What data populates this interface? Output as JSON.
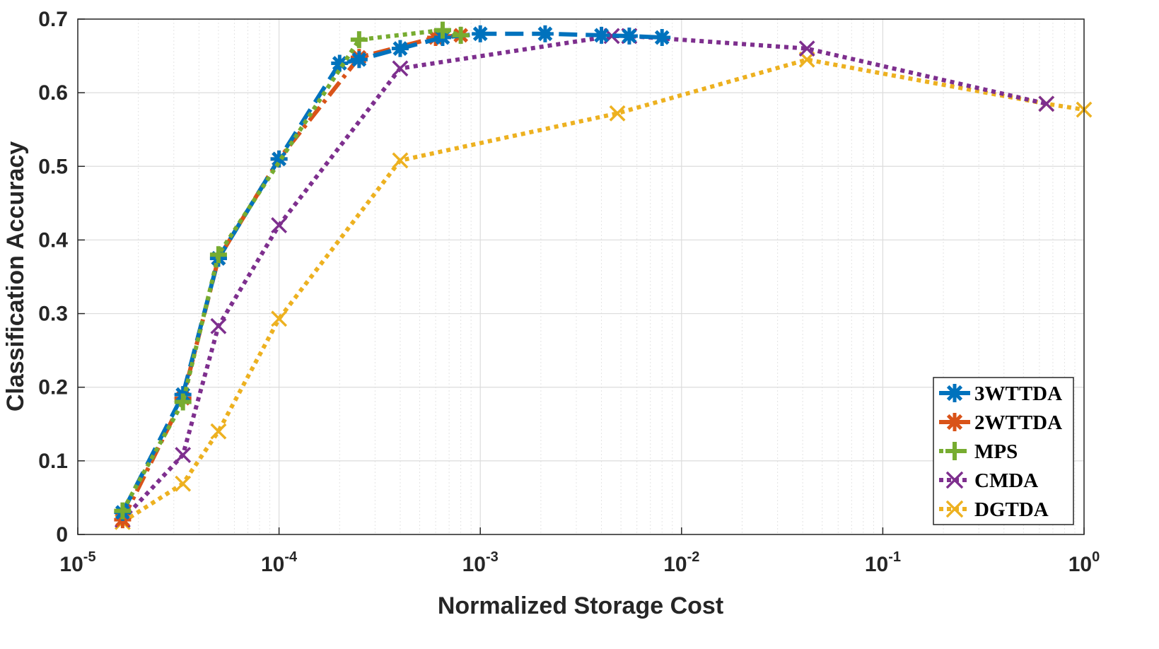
{
  "chart_data": {
    "type": "line",
    "title": "",
    "xlabel": "Normalized Storage Cost",
    "ylabel": "Classification Accuracy",
    "xscale": "log",
    "xlim": [
      1e-05,
      1
    ],
    "ylim": [
      0,
      0.7
    ],
    "grid": true,
    "legend_position": "bottom-right",
    "x_ticks": [
      {
        "base": "10",
        "exp": "-5"
      },
      {
        "base": "10",
        "exp": "-4"
      },
      {
        "base": "10",
        "exp": "-3"
      },
      {
        "base": "10",
        "exp": "-2"
      },
      {
        "base": "10",
        "exp": "-1"
      },
      {
        "base": "10",
        "exp": "0"
      }
    ],
    "y_ticks": [
      "0",
      "0.1",
      "0.2",
      "0.3",
      "0.4",
      "0.5",
      "0.6",
      "0.7"
    ],
    "series": [
      {
        "name": "3WTTDA",
        "color": "#0072BD",
        "marker": "asterisk",
        "line": "dashed",
        "x": [
          1.67e-05,
          3.33e-05,
          5e-05,
          0.0001,
          0.0002,
          0.00025,
          0.0004,
          0.00065,
          0.001,
          0.0021,
          0.004,
          0.0055,
          0.008
        ],
        "y": [
          0.03,
          0.19,
          0.375,
          0.51,
          0.64,
          0.645,
          0.66,
          0.675,
          0.68,
          0.68,
          0.678,
          0.677,
          0.675
        ]
      },
      {
        "name": "2WTTDA",
        "color": "#D95319",
        "marker": "asterisk",
        "line": "dashdot",
        "x": [
          1.67e-05,
          3.33e-05,
          5e-05,
          0.0001,
          0.00025,
          0.0006,
          0.0008
        ],
        "y": [
          0.02,
          0.185,
          0.375,
          0.51,
          0.648,
          0.675,
          0.678
        ]
      },
      {
        "name": "MPS",
        "color": "#77AC30",
        "marker": "plus",
        "line": "dotted",
        "x": [
          1.67e-05,
          3.33e-05,
          5e-05,
          0.00025,
          0.00065,
          0.0008
        ],
        "y": [
          0.032,
          0.18,
          0.38,
          0.672,
          0.685,
          0.678
        ]
      },
      {
        "name": "CMDA",
        "color": "#7E2F8E",
        "marker": "x",
        "line": "dotted",
        "x": [
          1.67e-05,
          3.33e-05,
          5e-05,
          0.0001,
          0.0004,
          0.0045,
          0.0055,
          0.042,
          0.65
        ],
        "y": [
          0.02,
          0.108,
          0.283,
          0.42,
          0.633,
          0.677,
          0.677,
          0.66,
          0.585
        ]
      },
      {
        "name": "DGTDA",
        "color": "#EDB120",
        "marker": "x",
        "line": "dotted",
        "x": [
          1.67e-05,
          3.33e-05,
          5e-05,
          0.0001,
          0.0004,
          0.0048,
          0.042,
          0.65,
          1.0
        ],
        "y": [
          0.017,
          0.069,
          0.14,
          0.293,
          0.508,
          0.572,
          0.645,
          0.585,
          0.577
        ]
      }
    ]
  }
}
